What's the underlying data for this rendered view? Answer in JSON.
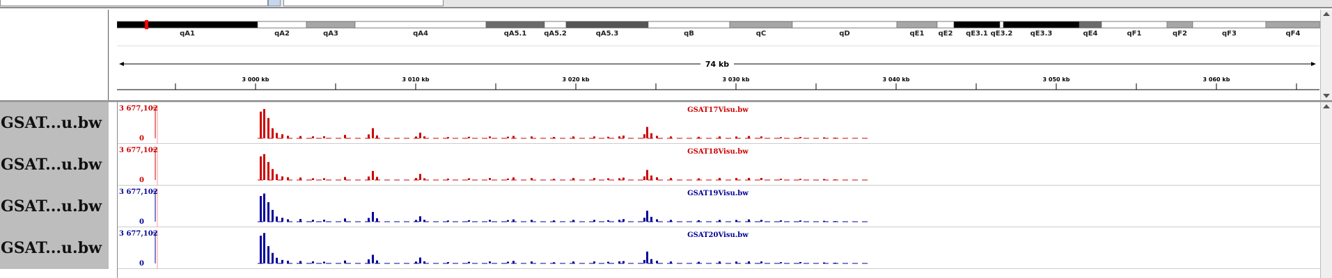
{
  "ideogram": {
    "bands": [
      {
        "label": "qA1",
        "color": "#000000"
      },
      {
        "label": "qA2",
        "color": "#ffffff"
      },
      {
        "label": "qA3",
        "color": "#a6a6a6"
      },
      {
        "label": "qA4",
        "color": "#ffffff"
      },
      {
        "label": "qA5.1",
        "color": "#6b6b6b"
      },
      {
        "label": "qA5.2",
        "color": "#ffffff"
      },
      {
        "label": "qA5.3",
        "color": "#555555"
      },
      {
        "label": "qB",
        "color": "#ffffff"
      },
      {
        "label": "qC",
        "color": "#a6a6a6"
      },
      {
        "label": "qD",
        "color": "#ffffff"
      },
      {
        "label": "qE1",
        "color": "#a6a6a6"
      },
      {
        "label": "qE2",
        "color": "#ffffff"
      },
      {
        "label": "qE3.1",
        "color": "#000000"
      },
      {
        "label": "qE3.2",
        "color": "#ffffff"
      },
      {
        "label": "qE3.3",
        "color": "#000000"
      },
      {
        "label": "qE4",
        "color": "#6b6b6b"
      },
      {
        "label": "qF1",
        "color": "#ffffff"
      },
      {
        "label": "qF2",
        "color": "#a6a6a6"
      },
      {
        "label": "qF3",
        "color": "#ffffff"
      },
      {
        "label": "qF4",
        "color": "#a6a6a6"
      }
    ],
    "highlight_color": "#ff0000"
  },
  "ruler": {
    "span_label": "74 kb",
    "ticks": [
      "3 000 kb",
      "3 010 kb",
      "3 020 kb",
      "3 030 kb",
      "3 040 kb",
      "3 050 kb",
      "3 060 kb"
    ]
  },
  "tracks": [
    {
      "short_name": "GSAT...u.bw",
      "title": "GSAT17Visu.bw",
      "color": "#cc0000",
      "range_max": "3 677,102",
      "range_min": "0"
    },
    {
      "short_name": "GSAT...u.bw",
      "title": "GSAT18Visu.bw",
      "color": "#cc0000",
      "range_max": "3 677,102",
      "range_min": "0"
    },
    {
      "short_name": "GSAT...u.bw",
      "title": "GSAT19Visu.bw",
      "color": "#000099",
      "range_max": "3 677,102",
      "range_min": "0"
    },
    {
      "short_name": "GSAT...u.bw",
      "title": "GSAT20Visu.bw",
      "color": "#000099",
      "range_max": "3 677,102",
      "range_min": "0"
    }
  ],
  "colors": {
    "grid_line": "#cccccc",
    "panel_gray": "#bdbdbd",
    "divider": "#9a9a9a"
  }
}
